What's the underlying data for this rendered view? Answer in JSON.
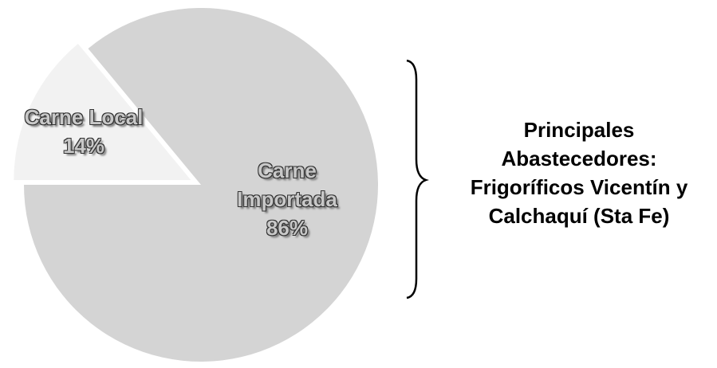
{
  "chart_data": {
    "type": "pie",
    "categories": [
      "Carne Local",
      "Carne Importada"
    ],
    "values": [
      14,
      86
    ],
    "value_labels": [
      "14%",
      "86%"
    ],
    "colors": [
      "#f2f2f2",
      "#d4d4d4"
    ],
    "explode": [
      true,
      false
    ],
    "annotation": "Principales Abastecedores: Frigoríficos Vicentín y Calchaquí (Sta Fe)"
  }
}
